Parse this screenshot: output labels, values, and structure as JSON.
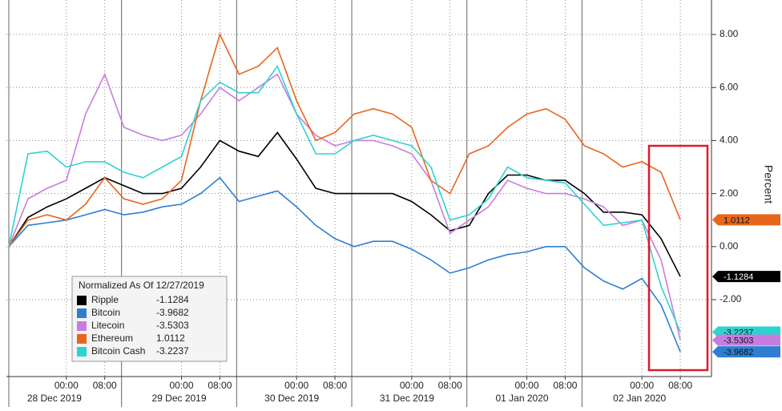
{
  "chart_data": {
    "type": "line",
    "y_label": "Percent",
    "legend_title": "Normalized As Of 12/27/2019",
    "x": [
      -12,
      -8,
      -4,
      0,
      4,
      8,
      12,
      16,
      20,
      24,
      28,
      32,
      36,
      40,
      44,
      48,
      52,
      56,
      60,
      64,
      68,
      72,
      76,
      80,
      84,
      88,
      92,
      96,
      100,
      104,
      108,
      112,
      116,
      120,
      124,
      128
    ],
    "xlim": [
      -12.5,
      134
    ],
    "xticks": [
      {
        "value": 0,
        "label": "00:00"
      },
      {
        "value": 8,
        "label": "08:00"
      },
      {
        "value": 24,
        "label": "00:00"
      },
      {
        "value": 32,
        "label": "08:00"
      },
      {
        "value": 48,
        "label": "00:00"
      },
      {
        "value": 56,
        "label": "08:00"
      },
      {
        "value": 72,
        "label": "00:00"
      },
      {
        "value": 80,
        "label": "08:00"
      },
      {
        "value": 96,
        "label": "00:00"
      },
      {
        "value": 104,
        "label": "08:00"
      },
      {
        "value": 120,
        "label": "00:00"
      },
      {
        "value": 128,
        "label": "08:00"
      }
    ],
    "day_labels": [
      {
        "value": -2.5,
        "label": "28 Dec 2019"
      },
      {
        "value": 23.5,
        "label": "29 Dec 2019"
      },
      {
        "value": 47,
        "label": "30 Dec 2019"
      },
      {
        "value": 71,
        "label": "31 Dec 2019"
      },
      {
        "value": 95,
        "label": "01 Jan 2020"
      },
      {
        "value": 119.5,
        "label": "02 Jan 2020"
      }
    ],
    "day_separators": [
      -12,
      11.5,
      35.5,
      59.5,
      83.5,
      107.5
    ],
    "ylim": [
      -4.9,
      9.3
    ],
    "yticks": [
      {
        "value": -2,
        "label": "-2.00"
      },
      {
        "value": 0,
        "label": "0.00"
      },
      {
        "value": 2,
        "label": "2.00"
      },
      {
        "value": 4,
        "label": "4.00"
      },
      {
        "value": 6,
        "label": "6.00"
      },
      {
        "value": 8,
        "label": "8.00"
      }
    ],
    "grid": true,
    "series": [
      {
        "name": "Ripple",
        "color": "#000000",
        "values": [
          0,
          1.1,
          1.5,
          1.8,
          2.2,
          2.6,
          2.3,
          2.0,
          2.0,
          2.2,
          3.0,
          4.0,
          3.6,
          3.4,
          4.3,
          3.3,
          2.2,
          2.0,
          2.0,
          2.0,
          2.0,
          1.7,
          1.2,
          0.6,
          0.8,
          2.0,
          2.7,
          2.7,
          2.5,
          2.5,
          2.0,
          1.3,
          1.3,
          1.2,
          0.3,
          -1.1284
        ]
      },
      {
        "name": "Bitcoin",
        "color": "#2e7fd1",
        "values": [
          0,
          0.8,
          0.9,
          1.0,
          1.2,
          1.4,
          1.2,
          1.3,
          1.5,
          1.6,
          2.0,
          2.6,
          1.7,
          1.9,
          2.1,
          1.5,
          0.8,
          0.3,
          0.0,
          0.2,
          0.2,
          -0.1,
          -0.5,
          -1.0,
          -0.8,
          -0.5,
          -0.3,
          -0.2,
          0.0,
          0.0,
          -0.8,
          -1.3,
          -1.6,
          -1.2,
          -2.2,
          -3.9682
        ]
      },
      {
        "name": "Litecoin",
        "color": "#c77de0",
        "values": [
          0,
          1.8,
          2.2,
          2.5,
          5.0,
          6.5,
          4.5,
          4.2,
          4.0,
          4.2,
          5.0,
          6.0,
          5.5,
          6.0,
          6.5,
          5.0,
          4.2,
          3.8,
          4.0,
          4.0,
          3.8,
          3.5,
          2.5,
          0.5,
          1.0,
          1.5,
          2.5,
          2.2,
          2.0,
          2.0,
          1.8,
          1.5,
          0.8,
          1.0,
          -0.5,
          -3.5303
        ]
      },
      {
        "name": "Ethereum",
        "color": "#e8661c",
        "values": [
          0,
          1.0,
          1.2,
          1.0,
          1.6,
          2.6,
          1.8,
          1.6,
          1.8,
          2.5,
          5.5,
          8.0,
          6.5,
          6.8,
          7.5,
          5.5,
          4.0,
          4.3,
          5.0,
          5.2,
          5.0,
          4.5,
          2.5,
          2.0,
          3.5,
          3.8,
          4.5,
          5.0,
          5.2,
          4.8,
          3.8,
          3.5,
          3.0,
          3.2,
          2.8,
          1.0112
        ]
      },
      {
        "name": "Bitcoin Cash",
        "color": "#2ed3d1",
        "values": [
          0,
          3.5,
          3.6,
          3.0,
          3.2,
          3.2,
          2.8,
          2.6,
          3.0,
          3.4,
          5.5,
          6.2,
          5.8,
          5.8,
          6.8,
          5.0,
          3.5,
          3.5,
          4.0,
          4.2,
          4.0,
          3.8,
          3.0,
          1.0,
          1.2,
          1.8,
          3.0,
          2.6,
          2.5,
          2.4,
          1.6,
          0.8,
          0.9,
          1.0,
          -1.5,
          -3.2237
        ]
      }
    ]
  }
}
